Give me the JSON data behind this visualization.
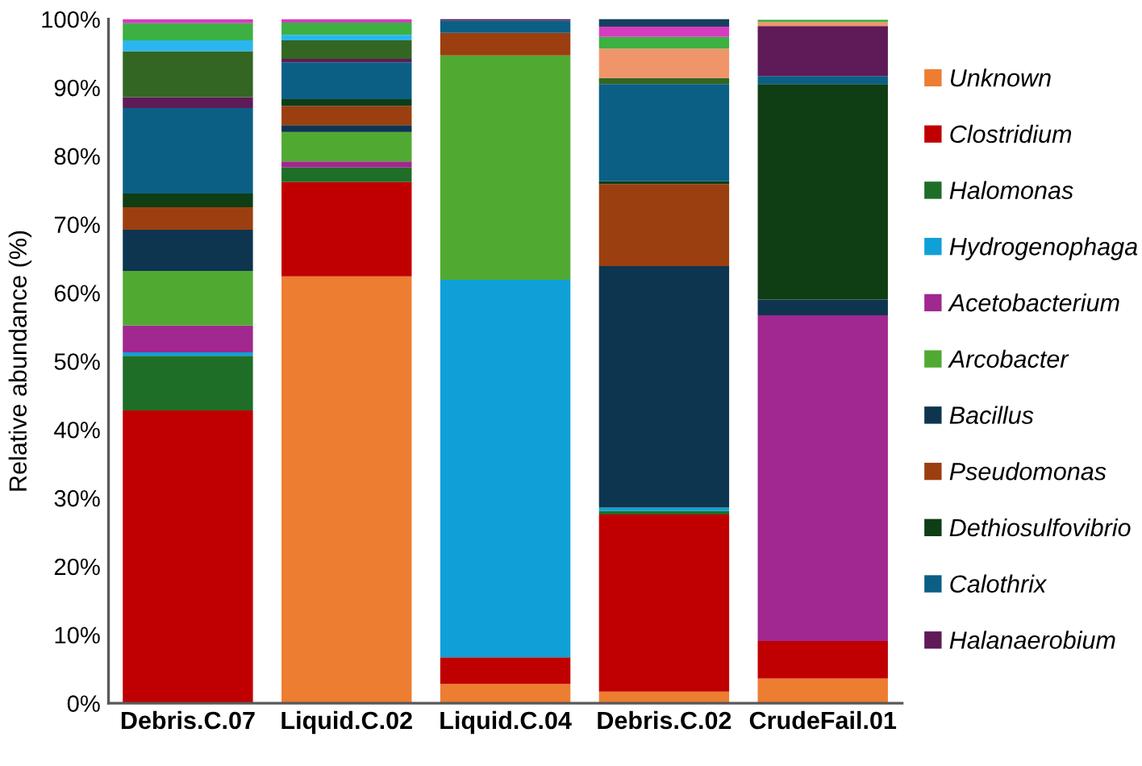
{
  "chart_data": {
    "type": "bar",
    "stacked": true,
    "ylabel": "Relative abundance (%)",
    "categories": [
      "Debris.C.07",
      "Liquid.C.02",
      "Liquid.C.04",
      "Debris.C.02",
      "CrudeFail.01"
    ],
    "ylim": [
      0,
      100
    ],
    "yticks": [
      {
        "value": 0,
        "label": "0%"
      },
      {
        "value": 10,
        "label": "10%"
      },
      {
        "value": 20,
        "label": "20%"
      },
      {
        "value": 30,
        "label": "30%"
      },
      {
        "value": 40,
        "label": "40%"
      },
      {
        "value": 50,
        "label": "50%"
      },
      {
        "value": 60,
        "label": "60%"
      },
      {
        "value": 70,
        "label": "70%"
      },
      {
        "value": 80,
        "label": "80%"
      },
      {
        "value": 90,
        "label": "90%"
      },
      {
        "value": 100,
        "label": "100%"
      }
    ],
    "grid": false,
    "legend": "right",
    "series": [
      {
        "name": "Unknown",
        "color": "#ed7d31",
        "values": [
          0,
          62.4,
          2.8,
          1.7,
          3.6
        ]
      },
      {
        "name": "Clostridium",
        "color": "#c00000",
        "values": [
          42.8,
          13.8,
          3.9,
          25.9,
          5.5
        ]
      },
      {
        "name": "Halomonas",
        "color": "#1e6e28",
        "values": [
          8.0,
          2.1,
          0,
          0.5,
          0
        ]
      },
      {
        "name": "Hydrogenophaga",
        "color": "#0fa0d8",
        "values": [
          0.5,
          0,
          55.2,
          0.5,
          0
        ]
      },
      {
        "name": "Acetobacterium",
        "color": "#a0288f",
        "values": [
          3.9,
          0.9,
          0,
          0,
          47.6
        ]
      },
      {
        "name": "Arcobacter",
        "color": "#50aa32",
        "values": [
          8.0,
          4.3,
          32.8,
          0,
          0
        ]
      },
      {
        "name": "Bacillus",
        "color": "#0e3550",
        "values": [
          6.0,
          1.0,
          0,
          35.3,
          2.3
        ]
      },
      {
        "name": "Pseudomonas",
        "color": "#9c3f10",
        "values": [
          3.3,
          2.8,
          3.3,
          12.0,
          0
        ]
      },
      {
        "name": "Dethiosulfovibrio",
        "color": "#0f3d14",
        "values": [
          2.0,
          1.0,
          0,
          0.4,
          31.5
        ]
      },
      {
        "name": "Calothrix",
        "color": "#0b5f85",
        "values": [
          12.5,
          5.4,
          1.8,
          14.2,
          1.2
        ]
      },
      {
        "name": "Halanaerobium",
        "color": "#5f1a58",
        "values": [
          1.6,
          0.5,
          0.3,
          0,
          7.3
        ]
      },
      {
        "color": "#336622",
        "values": [
          6.7,
          2.7,
          0,
          0.9,
          0
        ]
      },
      {
        "color": "#f0956a",
        "values": [
          0,
          0,
          0,
          4.3,
          0.6
        ]
      },
      {
        "color": "#29b6f0",
        "values": [
          1.6,
          0.8,
          0,
          0,
          0
        ]
      },
      {
        "color": "#3cb043",
        "values": [
          2.5,
          1.8,
          0,
          1.7,
          0.3
        ]
      },
      {
        "color": "#d63cc0",
        "values": [
          0.6,
          0.5,
          0,
          1.5,
          0
        ]
      },
      {
        "color": "#14405e",
        "values": [
          0,
          0,
          0,
          1.2,
          0
        ]
      }
    ]
  }
}
